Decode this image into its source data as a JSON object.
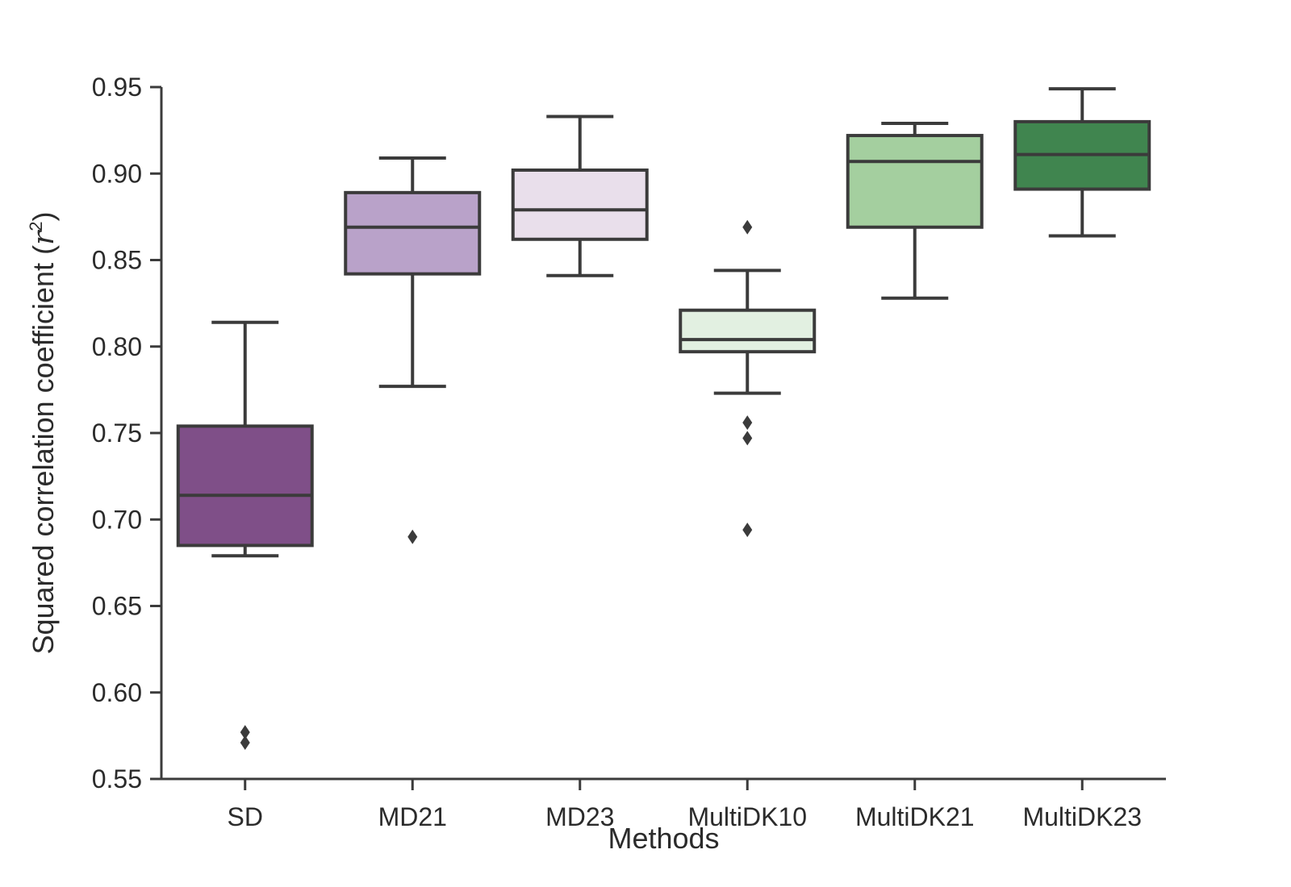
{
  "chart_data": {
    "type": "box",
    "title": "",
    "xlabel": "Methods",
    "ylabel": "Squared correlation coefficient",
    "ylabel_symbol": "r",
    "ylabel_superscript": "2",
    "ylim": [
      0.55,
      0.95
    ],
    "yticks": [
      "0.55",
      "0.60",
      "0.65",
      "0.70",
      "0.75",
      "0.80",
      "0.85",
      "0.90",
      "0.95"
    ],
    "categories": [
      "SD",
      "MD21",
      "MD23",
      "MultiDK10",
      "MultiDK21",
      "MultiDK23"
    ],
    "boxes": [
      {
        "name": "SD",
        "color": "#7f4f88",
        "whislo": 0.679,
        "q1": 0.685,
        "median": 0.714,
        "q3": 0.754,
        "whishi": 0.814,
        "fliers": [
          0.577,
          0.571
        ]
      },
      {
        "name": "MD21",
        "color": "#b9a2c9",
        "whislo": 0.777,
        "q1": 0.842,
        "median": 0.869,
        "q3": 0.889,
        "whishi": 0.909,
        "fliers": [
          0.69
        ]
      },
      {
        "name": "MD23",
        "color": "#e9dfeb",
        "whislo": 0.841,
        "q1": 0.862,
        "median": 0.879,
        "q3": 0.902,
        "whishi": 0.933,
        "fliers": []
      },
      {
        "name": "MultiDK10",
        "color": "#e2f0e1",
        "whislo": 0.773,
        "q1": 0.797,
        "median": 0.804,
        "q3": 0.821,
        "whishi": 0.844,
        "fliers": [
          0.869,
          0.756,
          0.747,
          0.694
        ]
      },
      {
        "name": "MultiDK21",
        "color": "#a4cf9f",
        "whislo": 0.828,
        "q1": 0.869,
        "median": 0.907,
        "q3": 0.922,
        "whishi": 0.929,
        "fliers": []
      },
      {
        "name": "MultiDK23",
        "color": "#40854f",
        "whislo": 0.864,
        "q1": 0.891,
        "median": 0.911,
        "q3": 0.93,
        "whishi": 0.949,
        "fliers": []
      }
    ]
  }
}
